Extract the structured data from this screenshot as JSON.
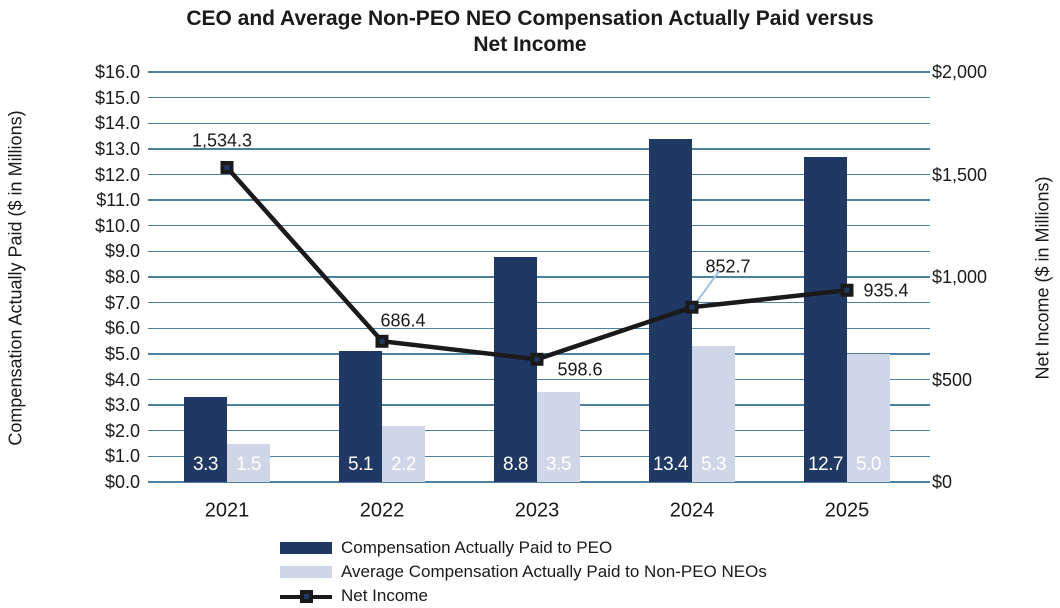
{
  "title": {
    "full": "CEO and Average Non-PEO NEO Compensation Actually Paid versus Net Income",
    "lines": [
      "CEO and Average Non-PEO NEO Compensation Actually Paid versus",
      "Net Income"
    ]
  },
  "colors": {
    "peo_bar": "#1F3864",
    "neo_bar": "#CFD6E8",
    "net_income_line": "#1A1A1A",
    "marker_fill": "#1A1A1A",
    "marker_center": "#1F3864",
    "gridline": "#4E81A1",
    "leader_line": "#9DC3E6",
    "bar_value_text": "#FFFFFF",
    "text": "#1A1A1A"
  },
  "chart_data": {
    "type": "bar+line combo",
    "title": "CEO and Average Non-PEO NEO Compensation Actually Paid versus Net Income",
    "categories": [
      "2021",
      "2022",
      "2023",
      "2024",
      "2025"
    ],
    "series": [
      {
        "name": "Compensation Actually Paid to PEO",
        "type": "bar",
        "axis": "left",
        "color": "#1F3864",
        "values": [
          3.3,
          5.1,
          8.8,
          13.4,
          12.7
        ],
        "value_labels": [
          "3.3",
          "5.1",
          "8.8",
          "13.4",
          "12.7"
        ]
      },
      {
        "name": "Average Compensation Actually Paid to Non-PEO NEOs",
        "type": "bar",
        "axis": "left",
        "color": "#CFD6E8",
        "values": [
          1.5,
          2.2,
          3.5,
          5.3,
          5.0
        ],
        "value_labels": [
          "1.5",
          "2.2",
          "3.5",
          "5.3",
          "5.0"
        ]
      },
      {
        "name": "Net Income",
        "type": "line",
        "axis": "right",
        "color": "#1A1A1A",
        "values": [
          1534.3,
          686.4,
          598.6,
          852.7,
          935.4
        ],
        "value_labels": [
          "1,534.3",
          "686.4",
          "598.6",
          "852.7",
          "935.4"
        ]
      }
    ],
    "left_axis": {
      "label": "Compensation Actually Paid ($ in Millions)",
      "range": [
        0,
        16
      ],
      "tick_step": 1,
      "tick_labels_top_to_bottom": [
        "$16.0",
        "$15.0",
        "$14.0",
        "$13.0",
        "$12.0",
        "$11.0",
        "$10.0",
        "$9.0",
        "$8.0",
        "$7.0",
        "$6.0",
        "$5.0",
        "$4.0",
        "$3.0",
        "$2.0",
        "$1.0",
        "$0.0"
      ]
    },
    "right_axis": {
      "label": "Net Income ($ in Millions)",
      "range": [
        0,
        2000
      ],
      "tick_step": 500,
      "tick_labels_top_to_bottom": [
        "$2,000",
        "$1,500",
        "$1,000",
        "$500",
        "$0"
      ]
    },
    "grid": true,
    "legend_position": "bottom-left",
    "annotations": {
      "leader_line_on_point": "852.7"
    }
  },
  "legend": {
    "items": [
      {
        "label": "Compensation Actually Paid to PEO",
        "swatch": "bar-navy"
      },
      {
        "label": "Average Compensation Actually Paid to Non-PEO NEOs",
        "swatch": "bar-lavender"
      },
      {
        "label": "Net Income",
        "swatch": "line-marker"
      }
    ]
  }
}
